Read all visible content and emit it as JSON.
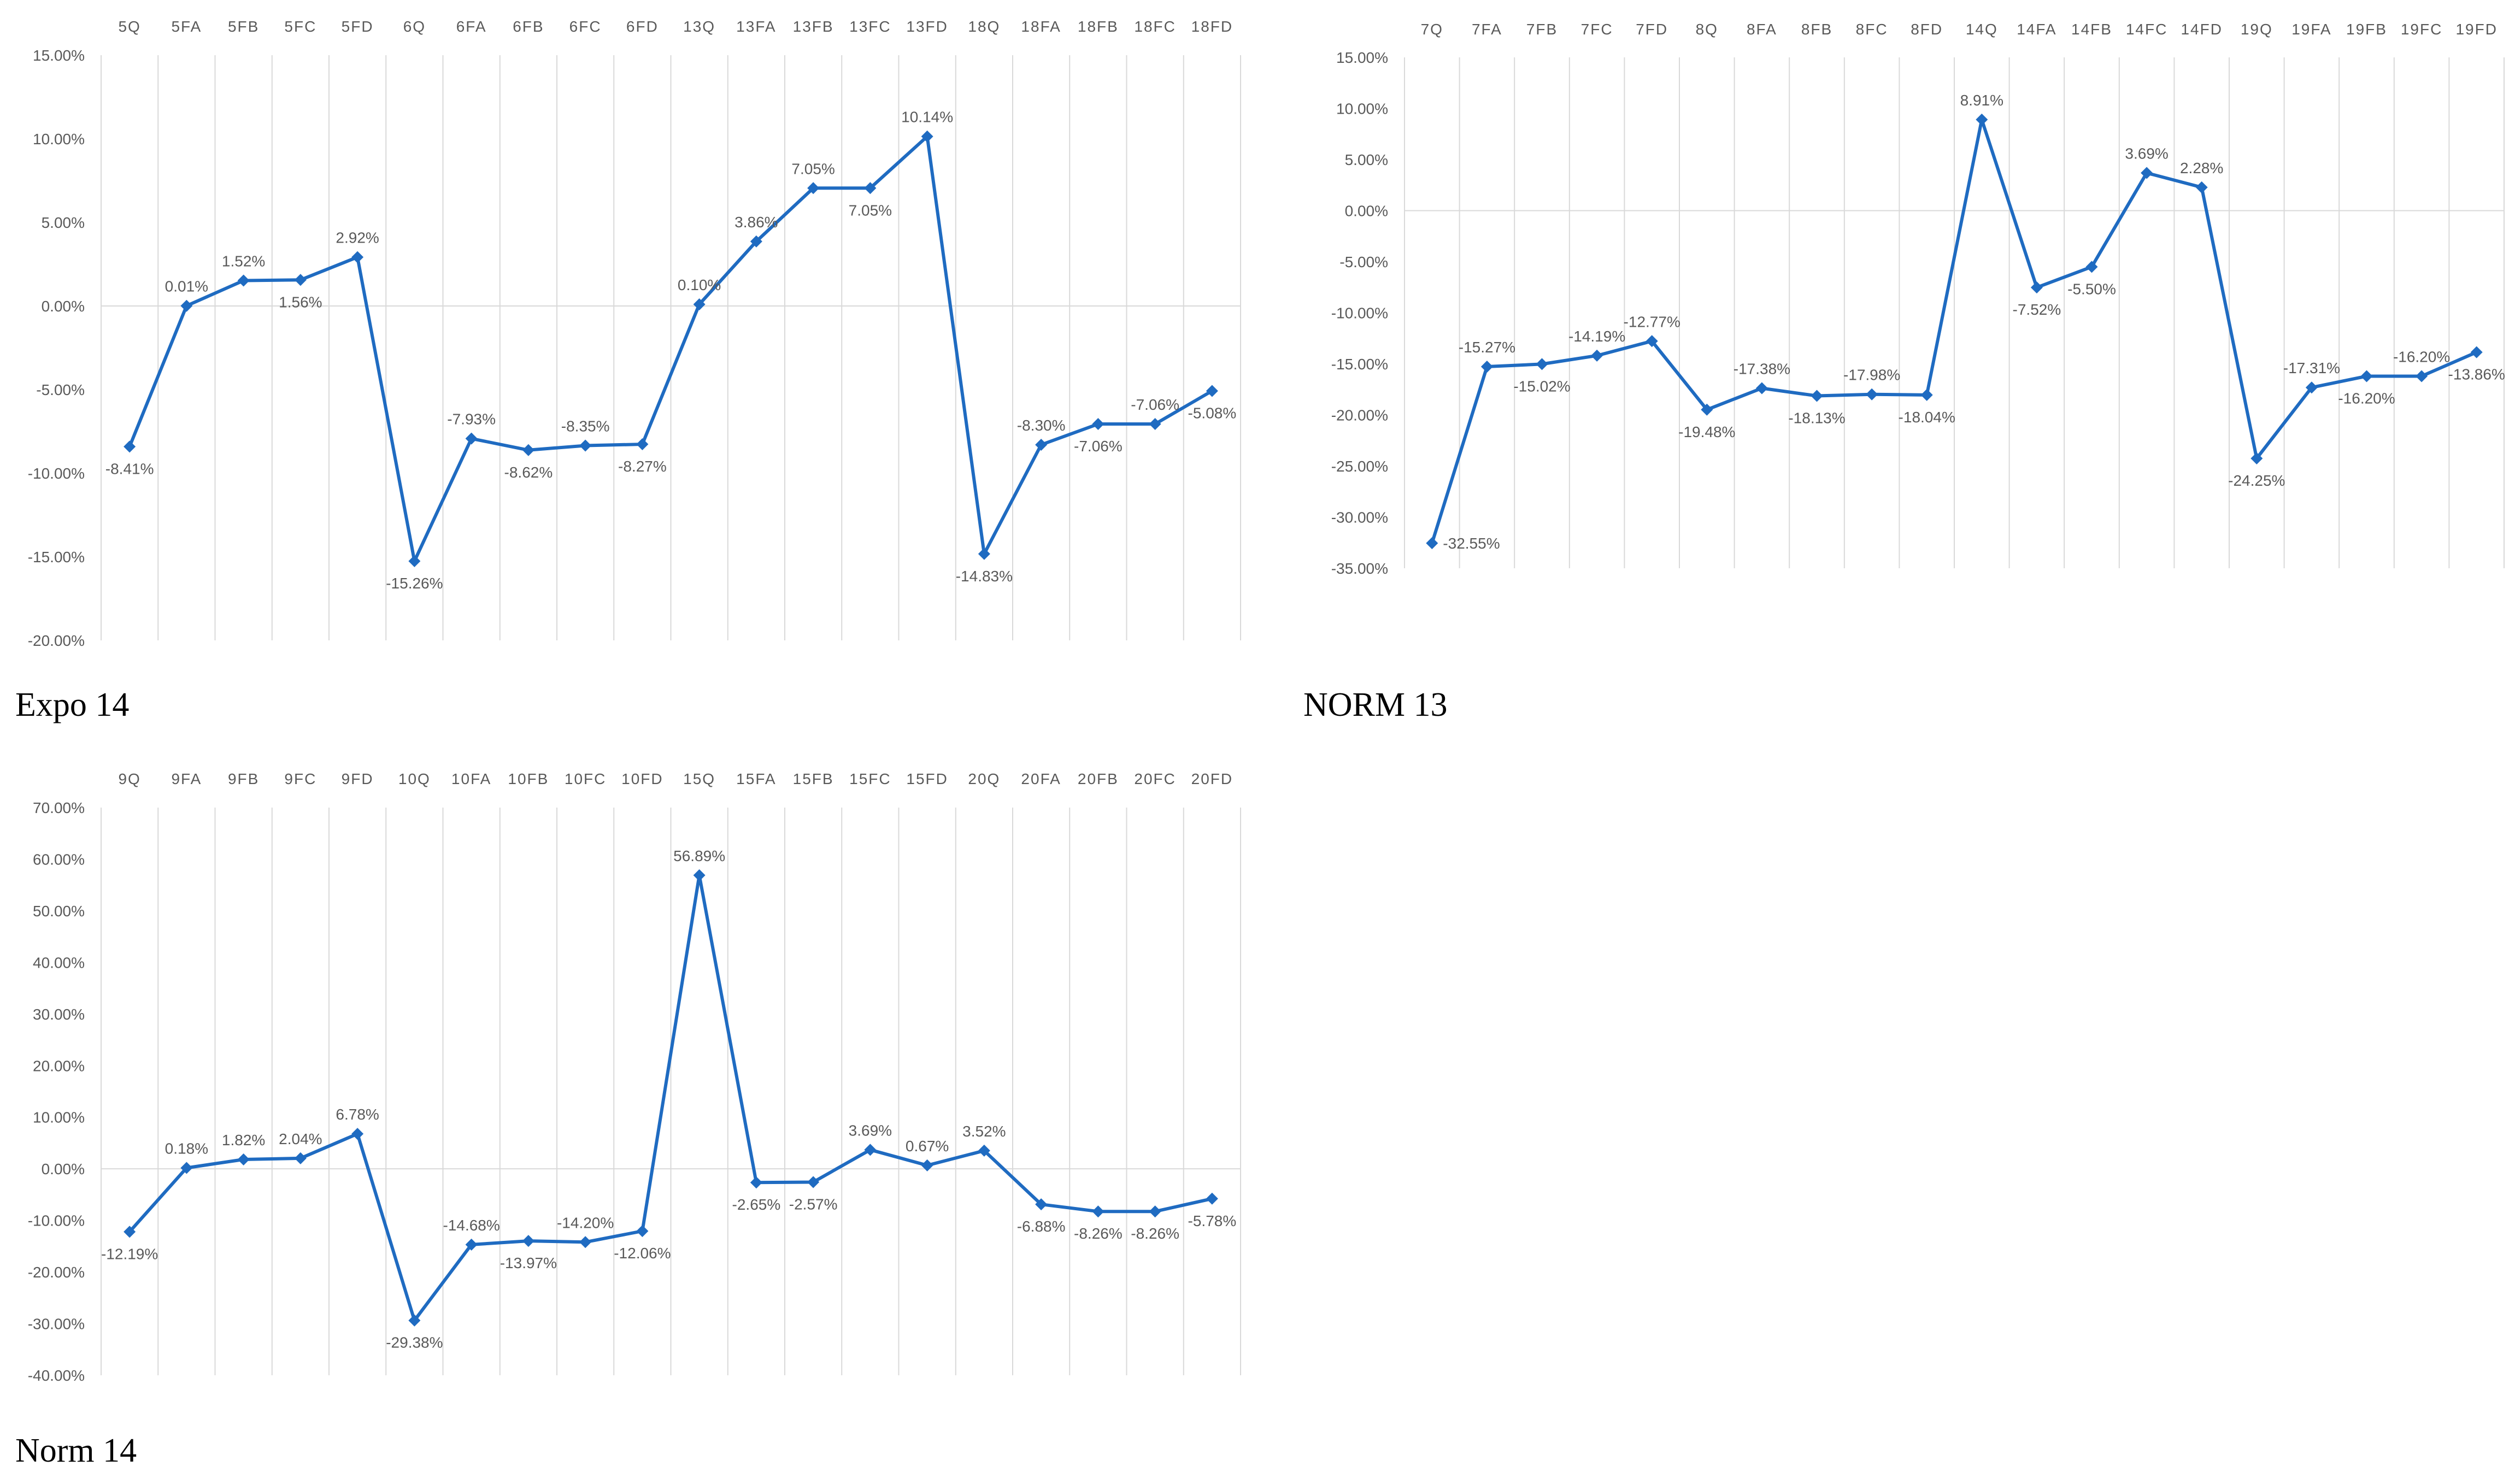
{
  "chart_data": [
    {
      "type": "line",
      "title": "Expo 14",
      "categories": [
        "5Q",
        "5FA",
        "5FB",
        "5FC",
        "5FD",
        "6Q",
        "6FA",
        "6FB",
        "6FC",
        "6FD",
        "13Q",
        "13FA",
        "13FB",
        "13FC",
        "13FD",
        "18Q",
        "18FA",
        "18FB",
        "18FC",
        "18FD"
      ],
      "values": [
        -8.41,
        0.01,
        1.52,
        1.56,
        2.92,
        -15.26,
        -7.93,
        -8.62,
        -8.35,
        -8.27,
        0.1,
        3.86,
        7.05,
        7.05,
        10.14,
        -14.83,
        -8.3,
        -7.06,
        -7.06,
        -5.08
      ],
      "data_labels": [
        "-8.41%",
        "0.01%",
        "1.52%",
        "1.56%",
        "2.92%",
        "-15.26%",
        "-7.93%",
        "-8.62%",
        "-8.35%",
        "-8.27%",
        "0.10%",
        "3.86%",
        "7.05%",
        "7.05%",
        "10.14%",
        "-14.83%",
        "-8.30%",
        "-7.06%",
        "-7.06%",
        "-5.08%"
      ],
      "label_positions": [
        "below",
        "above",
        "above",
        "below",
        "above",
        "below",
        "above",
        "below",
        "above",
        "below",
        "above",
        "above",
        "above",
        "below",
        "above",
        "below",
        "above",
        "below",
        "above",
        "below"
      ],
      "ylim": [
        -20,
        15
      ],
      "y_ticks": [
        15,
        10,
        5,
        0,
        -5,
        -10,
        -15,
        -20
      ],
      "y_tick_labels": [
        "15.00%",
        "10.00%",
        "5.00%",
        "0.00%",
        "-5.00%",
        "-10.00%",
        "-15.00%",
        "-20.00%"
      ],
      "x_axis_position": "top",
      "grid": "vertical",
      "line_color": "#1F6BC1",
      "marker": "diamond"
    },
    {
      "type": "line",
      "title": "NORM 13",
      "categories": [
        "7Q",
        "7FA",
        "7FB",
        "7FC",
        "7FD",
        "8Q",
        "8FA",
        "8FB",
        "8FC",
        "8FD",
        "14Q",
        "14FA",
        "14FB",
        "14FC",
        "14FD",
        "19Q",
        "19FA",
        "19FB",
        "19FC",
        "19FD"
      ],
      "values": [
        -32.55,
        -15.27,
        -15.02,
        -14.19,
        -12.77,
        -19.48,
        -17.38,
        -18.13,
        -17.98,
        -18.04,
        8.91,
        -7.52,
        -5.5,
        3.69,
        2.28,
        -24.25,
        -17.31,
        -16.2,
        -16.2,
        -13.86
      ],
      "data_labels": [
        "-32.55%",
        "-15.27%",
        "-15.02%",
        "-14.19%",
        "-12.77%",
        "-19.48%",
        "-17.38%",
        "-18.13%",
        "-17.98%",
        "-18.04%",
        "8.91%",
        "-7.52%",
        "-5.50%",
        "3.69%",
        "2.28%",
        "-24.25%",
        "-17.31%",
        "-16.20%",
        "-16.20%",
        "-13.86%"
      ],
      "label_positions": [
        "right",
        "above",
        "below",
        "above",
        "above",
        "below",
        "above",
        "below",
        "above",
        "below",
        "above",
        "below",
        "below",
        "above",
        "above",
        "below",
        "above",
        "below",
        "above",
        "below"
      ],
      "ylim": [
        -35,
        15
      ],
      "y_ticks": [
        15,
        10,
        5,
        0,
        -5,
        -10,
        -15,
        -20,
        -25,
        -30,
        -35
      ],
      "y_tick_labels": [
        "15.00%",
        "10.00%",
        "5.00%",
        "0.00%",
        "-5.00%",
        "-10.00%",
        "-15.00%",
        "-20.00%",
        "-25.00%",
        "-30.00%",
        "-35.00%"
      ],
      "x_axis_position": "top",
      "grid": "vertical",
      "line_color": "#1F6BC1",
      "marker": "diamond"
    },
    {
      "type": "line",
      "title": "Norm 14",
      "categories": [
        "9Q",
        "9FA",
        "9FB",
        "9FC",
        "9FD",
        "10Q",
        "10FA",
        "10FB",
        "10FC",
        "10FD",
        "15Q",
        "15FA",
        "15FB",
        "15FC",
        "15FD",
        "20Q",
        "20FA",
        "20FB",
        "20FC",
        "20FD"
      ],
      "values": [
        -12.19,
        0.18,
        1.82,
        2.04,
        6.78,
        -29.38,
        -14.68,
        -13.97,
        -14.2,
        -12.06,
        56.89,
        -2.65,
        -2.57,
        3.69,
        0.67,
        3.52,
        -6.88,
        -8.26,
        -8.26,
        -5.78
      ],
      "data_labels": [
        "-12.19%",
        "0.18%",
        "1.82%",
        "2.04%",
        "6.78%",
        "-29.38%",
        "-14.68%",
        "-13.97%",
        "-14.20%",
        "-12.06%",
        "56.89%",
        "-2.65%",
        "-2.57%",
        "3.69%",
        "0.67%",
        "3.52%",
        "-6.88%",
        "-8.26%",
        "-8.26%",
        "-5.78%"
      ],
      "label_positions": [
        "below",
        "above",
        "above",
        "above",
        "above",
        "below",
        "above",
        "below",
        "above",
        "below",
        "above",
        "below",
        "below",
        "above",
        "above",
        "above",
        "below",
        "below",
        "below",
        "below"
      ],
      "ylim": [
        -40,
        70
      ],
      "y_ticks": [
        70,
        60,
        50,
        40,
        30,
        20,
        10,
        0,
        -10,
        -20,
        -30,
        -40
      ],
      "y_tick_labels": [
        "70.00%",
        "60.00%",
        "50.00%",
        "40.00%",
        "30.00%",
        "20.00%",
        "10.00%",
        "0.00%",
        "-10.00%",
        "-20.00%",
        "-30.00%",
        "-40.00%"
      ],
      "x_axis_position": "top",
      "grid": "vertical",
      "line_color": "#1F6BC1",
      "marker": "diamond"
    }
  ]
}
